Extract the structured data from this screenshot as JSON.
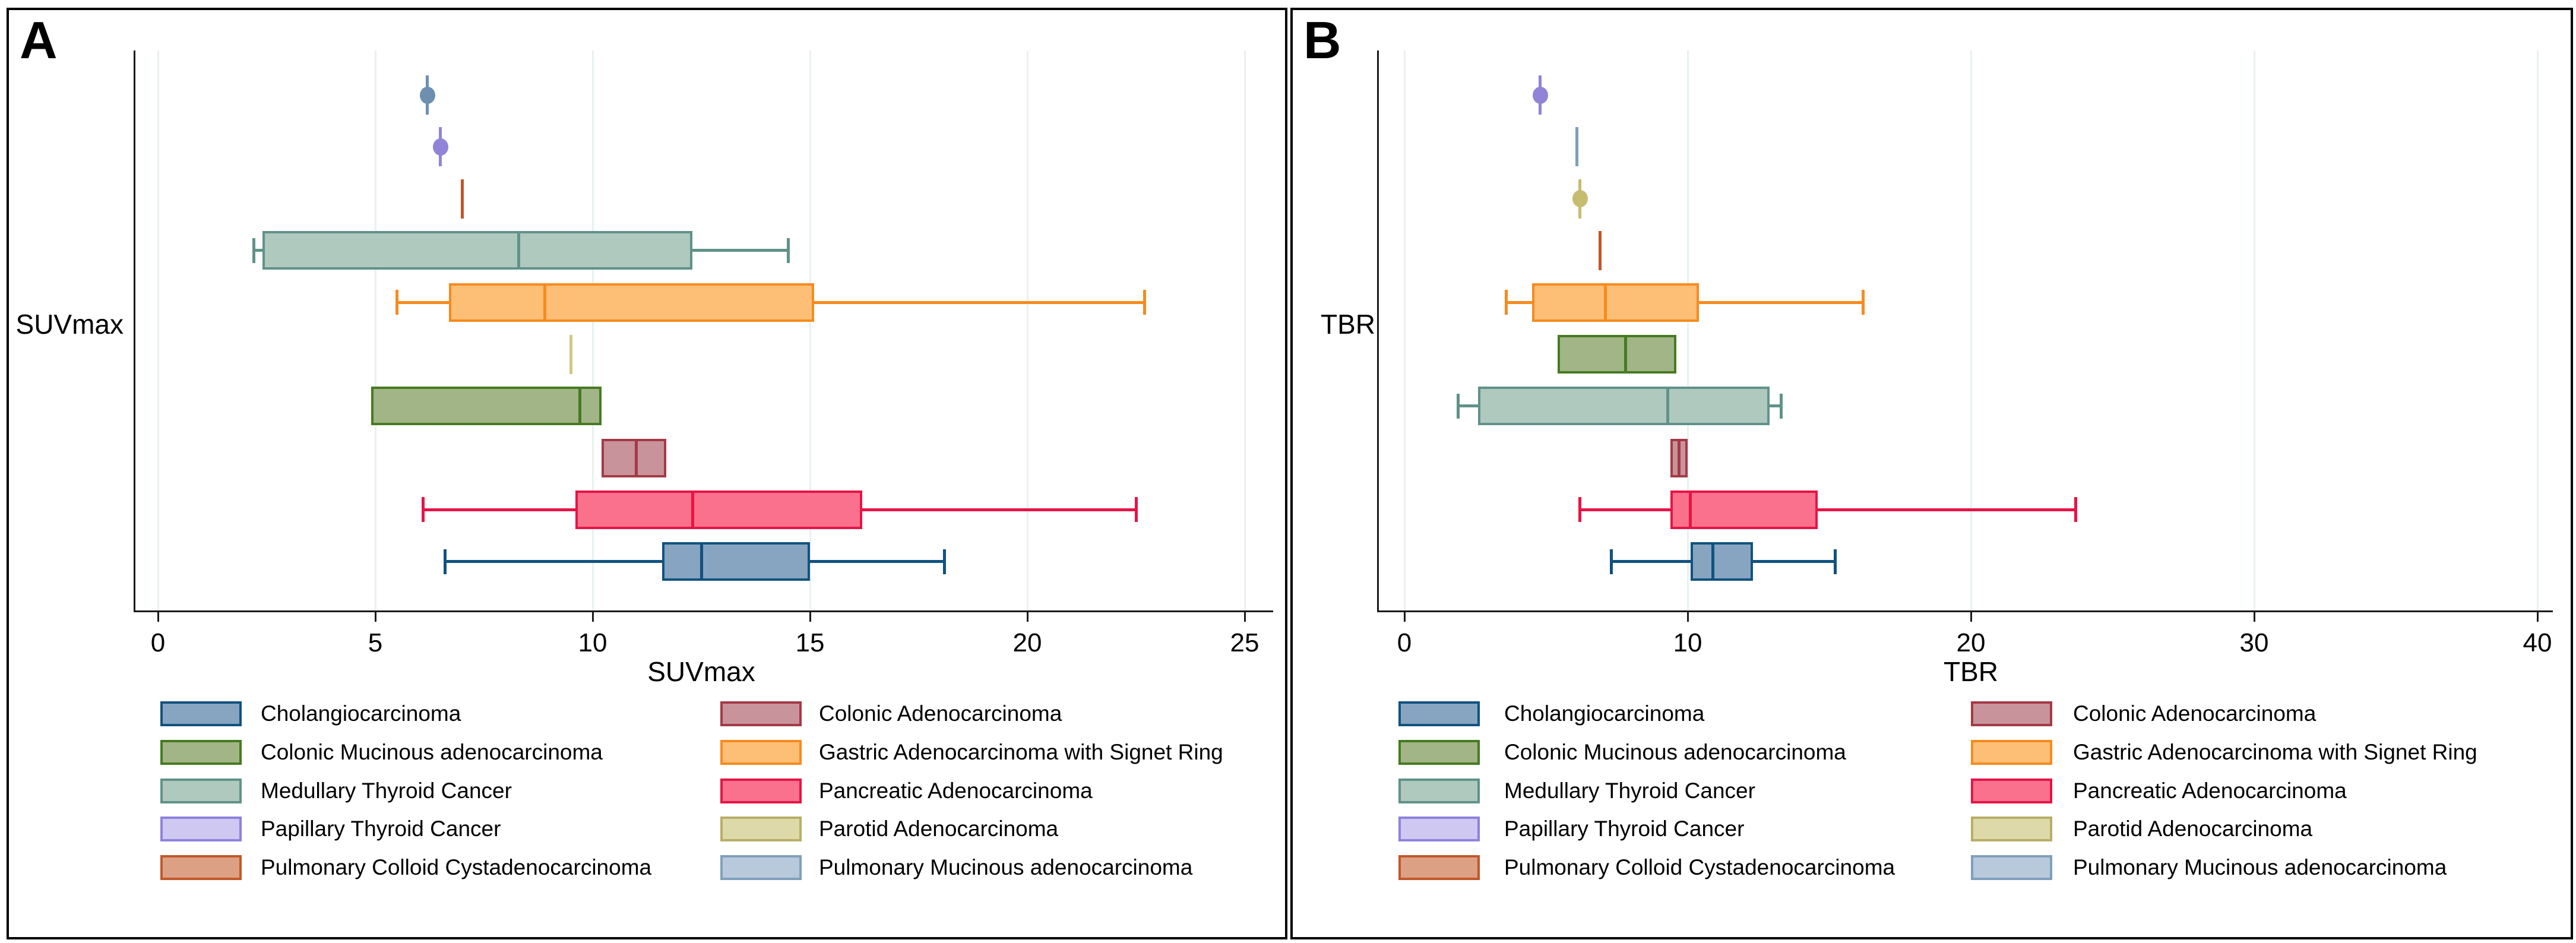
{
  "chart_data": [
    {
      "type": "boxplot",
      "orientation": "horizontal",
      "panel_label": "A",
      "xlabel": "SUVmax",
      "ylabel": "SUVmax",
      "xlim": [
        0,
        25.6
      ],
      "xticks": [
        0,
        5,
        10,
        15,
        20,
        25
      ],
      "grid": true,
      "rows": [
        {
          "group": "Pulmonary Mucinous adenocarcinoma",
          "mark": "point",
          "value": 6.2,
          "color": "#6E90AE"
        },
        {
          "group": "Papillary Thyroid Cancer",
          "mark": "point",
          "value": 6.5,
          "color": "#9184D8"
        },
        {
          "group": "Pulmonary Colloid Cystadenocarcinoma",
          "mark": "line",
          "value": 7.0,
          "color": "#C1572B"
        },
        {
          "group": "Medullary Thyroid Cancer",
          "mark": "box",
          "min": 2.2,
          "q1": 2.4,
          "median": 8.3,
          "q3": 12.3,
          "max": 14.5,
          "whiskers": true
        },
        {
          "group": "Gastric Adenocarcinoma with Signet Ring",
          "mark": "box",
          "min": 5.5,
          "q1": 6.7,
          "median": 8.9,
          "q3": 15.1,
          "max": 22.7,
          "whiskers": true
        },
        {
          "group": "Parotid Adenocarcinoma",
          "mark": "line",
          "value": 9.5,
          "color": "#D2C87E"
        },
        {
          "group": "Colonic Mucinous adenocarcinoma",
          "mark": "box",
          "min": 4.9,
          "q1": 4.9,
          "median": 9.7,
          "q3": 10.2,
          "max": 10.2,
          "whiskers": false
        },
        {
          "group": "Colonic Adenocarcinoma",
          "mark": "box",
          "min": 10.2,
          "q1": 10.2,
          "median": 11.0,
          "q3": 11.7,
          "max": 11.7,
          "whiskers": false
        },
        {
          "group": "Pancreatic Adenocarcinoma",
          "mark": "box",
          "min": 6.1,
          "q1": 9.6,
          "median": 12.3,
          "q3": 16.2,
          "max": 22.5,
          "whiskers": true
        },
        {
          "group": "Cholangiocarcinoma",
          "mark": "box",
          "min": 6.6,
          "q1": 11.6,
          "median": 12.5,
          "q3": 15.0,
          "max": 18.1,
          "whiskers": true
        }
      ]
    },
    {
      "type": "boxplot",
      "orientation": "horizontal",
      "panel_label": "B",
      "xlabel": "TBR",
      "ylabel": "TBR",
      "xlim": [
        0,
        41
      ],
      "xticks": [
        0,
        10,
        20,
        30,
        40
      ],
      "grid": true,
      "rows": [
        {
          "group": "Papillary Thyroid Cancer",
          "mark": "point",
          "value": 4.8,
          "color": "#9184D8"
        },
        {
          "group": "Pulmonary Mucinous adenocarcinoma",
          "mark": "line",
          "value": 6.1,
          "color": "#7F9FBB"
        },
        {
          "group": "Parotid Adenocarcinoma",
          "mark": "point",
          "value": 6.2,
          "color": "#C6BC6F"
        },
        {
          "group": "Pulmonary Colloid Cystadenocarcinoma",
          "mark": "line",
          "value": 6.9,
          "color": "#C1572B"
        },
        {
          "group": "Gastric Adenocarcinoma with Signet Ring",
          "mark": "box",
          "min": 3.6,
          "q1": 4.5,
          "median": 7.1,
          "q3": 10.4,
          "max": 16.2,
          "whiskers": true
        },
        {
          "group": "Colonic Mucinous adenocarcinoma",
          "mark": "box",
          "min": 5.4,
          "q1": 5.4,
          "median": 7.8,
          "q3": 9.6,
          "max": 9.6,
          "whiskers": false
        },
        {
          "group": "Medullary Thyroid Cancer",
          "mark": "box",
          "min": 1.9,
          "q1": 2.6,
          "median": 9.3,
          "q3": 12.9,
          "max": 13.3,
          "whiskers": true
        },
        {
          "group": "Colonic Adenocarcinoma",
          "mark": "box",
          "min": 9.4,
          "q1": 9.4,
          "median": 9.7,
          "q3": 10.0,
          "max": 10.0,
          "whiskers": false
        },
        {
          "group": "Pancreatic Adenocarcinoma",
          "mark": "box",
          "min": 6.2,
          "q1": 9.4,
          "median": 10.1,
          "q3": 14.6,
          "max": 23.7,
          "whiskers": true
        },
        {
          "group": "Cholangiocarcinoma",
          "mark": "box",
          "min": 7.3,
          "q1": 10.1,
          "median": 10.9,
          "q3": 12.3,
          "max": 15.2,
          "whiskers": true
        }
      ]
    }
  ],
  "legend": {
    "position": "bottom",
    "columns": [
      [
        "Cholangiocarcinoma",
        "Colonic Mucinous adenocarcinoma",
        "Medullary Thyroid Cancer",
        "Papillary Thyroid Cancer",
        "Pulmonary Colloid Cystadenocarcinoma"
      ],
      [
        "Colonic Adenocarcinoma",
        "Gastric Adenocarcinoma with Signet Ring",
        "Pancreatic Adenocarcinoma",
        "Parotid Adenocarcinoma",
        "Pulmonary Mucinous adenocarcinoma"
      ]
    ]
  },
  "styles": {
    "axis_color": "#1A1A1A",
    "gridline_color": "#E9F0F2",
    "text_color": "#000000",
    "groups": {
      "Cholangiocarcinoma": {
        "fill": "#87A5C1",
        "border": "#11527F"
      },
      "Colonic Mucinous adenocarcinoma": {
        "fill": "#A2B586",
        "border": "#467B22"
      },
      "Medullary Thyroid Cancer": {
        "fill": "#AFC9BF",
        "border": "#609289"
      },
      "Papillary Thyroid Cancer": {
        "fill": "#CFC8F0",
        "border": "#8D82DC"
      },
      "Pulmonary Colloid Cystadenocarcinoma": {
        "fill": "#DCA184",
        "border": "#C1572B"
      },
      "Colonic Adenocarcinoma": {
        "fill": "#C9939B",
        "border": "#A23B46"
      },
      "Gastric Adenocarcinoma with Signet Ring": {
        "fill": "#FDBE75",
        "border": "#F68B1F"
      },
      "Pancreatic Adenocarcinoma": {
        "fill": "#F9718D",
        "border": "#E51546"
      },
      "Parotid Adenocarcinoma": {
        "fill": "#DED9A9",
        "border": "#B8AE66"
      },
      "Pulmonary Mucinous adenocarcinoma": {
        "fill": "#B7C9DB",
        "border": "#7FA0BC"
      }
    }
  }
}
